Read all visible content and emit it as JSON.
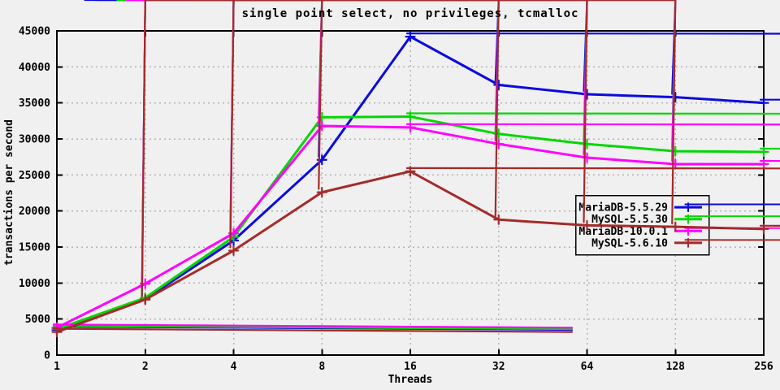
{
  "title": "single point select, no privileges, tcmalloc",
  "chart_data": {
    "type": "line",
    "x_scale": "log2",
    "categories": [
      1,
      2,
      4,
      8,
      16,
      32,
      64,
      128,
      256
    ],
    "xlabel": "Threads",
    "ylabel": "transactions per second",
    "ylim": [
      0,
      45000
    ],
    "ytick_step": 5000,
    "grid": true,
    "legend_position": "right-middle",
    "marker": "asterisk",
    "series": [
      {
        "name": "MariaDB-5.5.29",
        "color": "#0a0ae0",
        "values": [
          3500,
          7750,
          15900,
          27100,
          44200,
          37500,
          36200,
          35800,
          35000
        ]
      },
      {
        "name": "MySQL-5.5.30",
        "color": "#00d800",
        "values": [
          3600,
          7950,
          16400,
          33000,
          33100,
          30700,
          29300,
          28300,
          28200
        ]
      },
      {
        "name": "MariaDB-10.0.1",
        "color": "#ff00ff",
        "values": [
          3800,
          9900,
          16900,
          31800,
          31600,
          29300,
          27400,
          26500,
          26500
        ]
      },
      {
        "name": "MySQL-5.6.10",
        "color": "#a52a2a",
        "values": [
          3200,
          7700,
          14500,
          22600,
          25500,
          18800,
          18000,
          17800,
          17500
        ]
      }
    ]
  },
  "colors": {
    "background": "#f0f0f0",
    "grid": "#b4b4b4",
    "axis": "#000000",
    "text": "#000000"
  }
}
